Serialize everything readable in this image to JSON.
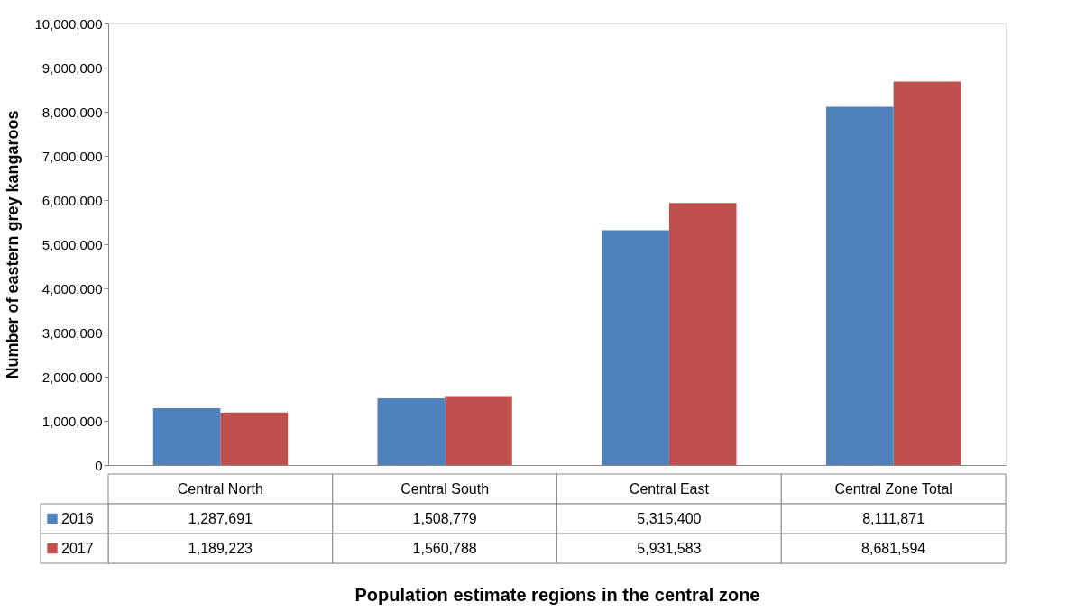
{
  "chart_data": {
    "type": "bar",
    "xlabel": "Population estimate regions in the central zone",
    "ylabel": "Number of eastern grey kangaroos",
    "categories": [
      "Central North",
      "Central South",
      "Central East",
      "Central Zone Total"
    ],
    "series": [
      {
        "name": "2016",
        "color": "#4f81bd",
        "values": [
          1287691,
          1508779,
          5315400,
          8111871
        ],
        "value_labels": [
          "1,287,691",
          "1,508,779",
          "5,315,400",
          "8,111,871"
        ]
      },
      {
        "name": "2017",
        "color": "#c0504d",
        "values": [
          1189223,
          1560788,
          5931583,
          8681594
        ],
        "value_labels": [
          "1,189,223",
          "1,560,788",
          "5,931,583",
          "8,681,594"
        ]
      }
    ],
    "ylim": [
      0,
      10000000
    ],
    "yticks": [
      0,
      {
        "value": 1000000,
        "label": "1,000,000"
      },
      {
        "value": 2000000,
        "label": "2,000,000"
      },
      {
        "value": 3000000,
        "label": "3,000,000"
      },
      {
        "value": 4000000,
        "label": "4,000,000"
      },
      {
        "value": 5000000,
        "label": "5,000,000"
      },
      {
        "value": 6000000,
        "label": "6,000,000"
      },
      {
        "value": 7000000,
        "label": "7,000,000"
      },
      {
        "value": 8000000,
        "label": "8,000,000"
      },
      {
        "value": 9000000,
        "label": "9,000,000"
      },
      {
        "value": 10000000,
        "label": "10,000,000"
      }
    ],
    "grid": false,
    "legend": "bottom left"
  }
}
